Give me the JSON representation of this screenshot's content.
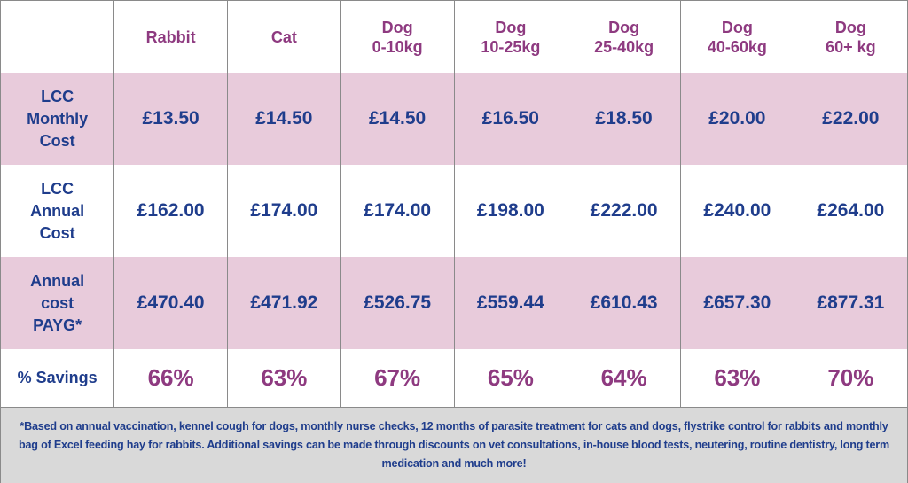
{
  "columns": [
    "",
    "Rabbit",
    "Cat",
    "Dog\n0-10kg",
    "Dog\n10-25kg",
    "Dog\n25-40kg",
    "Dog\n40-60kg",
    "Dog\n60+ kg"
  ],
  "rows": [
    {
      "label": "LCC\nMonthly\nCost",
      "values": [
        "£13.50",
        "£14.50",
        "£14.50",
        "£16.50",
        "£18.50",
        "£20.00",
        "£22.00"
      ],
      "shaded": true
    },
    {
      "label": "LCC\nAnnual\nCost",
      "values": [
        "£162.00",
        "£174.00",
        "£174.00",
        "£198.00",
        "£222.00",
        "£240.00",
        "£264.00"
      ],
      "shaded": false
    },
    {
      "label": "Annual\ncost\nPAYG*",
      "values": [
        "£470.40",
        "£471.92",
        "£526.75",
        "£559.44",
        "£610.43",
        "£657.30",
        "£877.31"
      ],
      "shaded": true
    }
  ],
  "savings": {
    "label": "% Savings",
    "values": [
      "66%",
      "63%",
      "67%",
      "65%",
      "64%",
      "63%",
      "70%"
    ]
  },
  "footnote": "*Based on annual vaccination, kennel cough for dogs, monthly nurse checks, 12 months of parasite treatment for cats and dogs, flystrike control for rabbits and monthly bag of Excel feeding hay for rabbits. Additional savings can be made through discounts on vet consultations, in-house blood tests, neutering, routine dentistry, long term medication and much more!",
  "colors": {
    "heading": "#8e3a80",
    "text": "#1f3d8c",
    "shade": "#e8cbdb",
    "footer": "#d9d9d9"
  }
}
